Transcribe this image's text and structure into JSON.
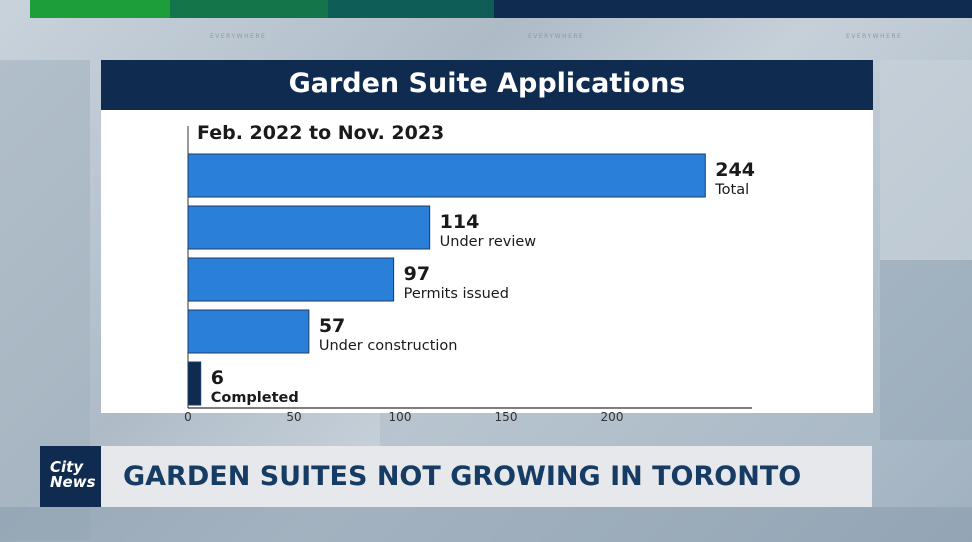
{
  "header": {
    "title": "Garden Suite Applications"
  },
  "watermark_text": "EVERYWHERE",
  "colors": {
    "bar": "#2a7fd9",
    "bar_small": "#0f2b4f",
    "header_bg": "#0f2b4f",
    "headline_text": "#173c63"
  },
  "chart_data": {
    "type": "bar",
    "orientation": "horizontal",
    "subtitle": "Feb. 2022 to Nov. 2023",
    "bars": [
      {
        "value": 244,
        "value_label": "244",
        "label": "Total"
      },
      {
        "value": 114,
        "value_label": "114",
        "label": "Under review"
      },
      {
        "value": 97,
        "value_label": "97",
        "label": "Permits issued"
      },
      {
        "value": 57,
        "value_label": "57",
        "label": "Under construction"
      },
      {
        "value": 6,
        "value_label": "6",
        "label": "Completed"
      }
    ],
    "x_ticks": [
      0,
      50,
      100,
      150,
      200
    ],
    "xlim": [
      0,
      265
    ],
    "grid": false,
    "legend": "none"
  },
  "lower_third": {
    "logo_line1": "City",
    "logo_line2": "News",
    "headline": "GARDEN SUITES NOT GROWING IN TORONTO"
  }
}
